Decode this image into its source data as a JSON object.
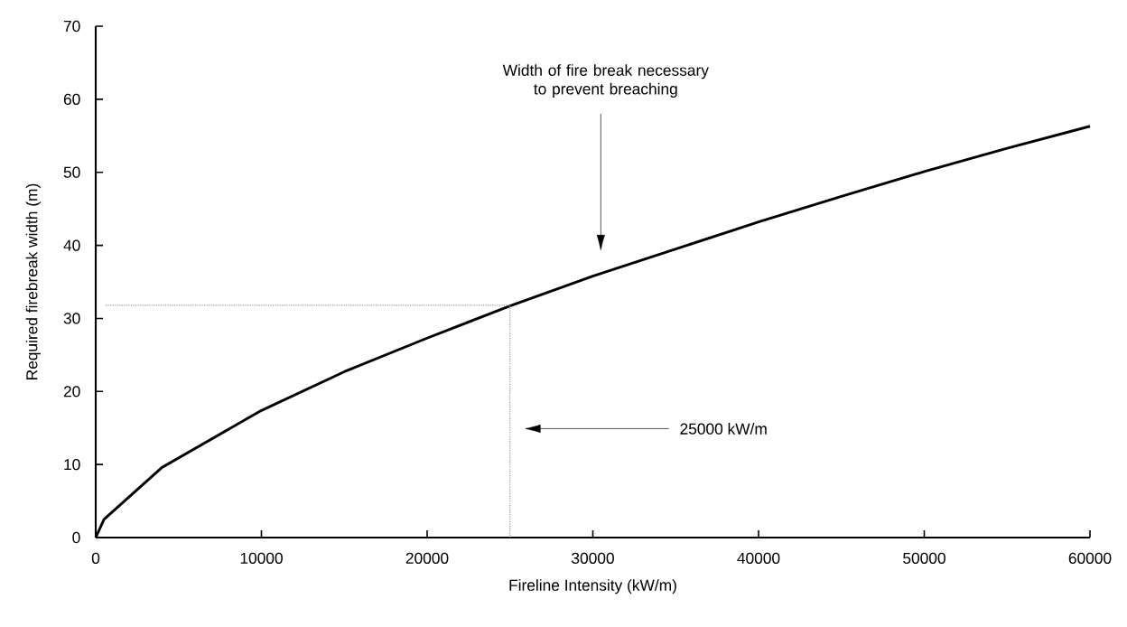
{
  "chart_data": {
    "type": "line",
    "xlabel": "Fireline Intensity (kW/m)",
    "ylabel": "Required firebreak width (m)",
    "xlim": [
      0,
      60000
    ],
    "ylim": [
      0,
      70
    ],
    "xticks": [
      0,
      10000,
      20000,
      30000,
      40000,
      50000,
      60000
    ],
    "yticks": [
      0,
      10,
      20,
      30,
      40,
      50,
      60,
      70
    ],
    "grid": false,
    "marker": "none",
    "line_style": "solid",
    "series": [
      {
        "color": "#000000",
        "x": [
          0,
          500,
          4000,
          10000,
          15000,
          20000,
          25000,
          30000,
          35000,
          40000,
          45000,
          50000,
          55000,
          60000
        ],
        "values": [
          0,
          2.5,
          9.6,
          17.4,
          22.7,
          27.3,
          31.7,
          35.8,
          39.5,
          43.2,
          46.7,
          50.1,
          53.3,
          56.3
        ]
      },
      {
        "type": "line",
        "line_style": "dotted",
        "color": "#999999",
        "x": [
          600,
          25000,
          25000
        ],
        "values": [
          31.8,
          31.8,
          0
        ]
      }
    ],
    "annotations": [
      "Width of fire break necessary to prevent breaching",
      "25000 kW/m"
    ]
  }
}
